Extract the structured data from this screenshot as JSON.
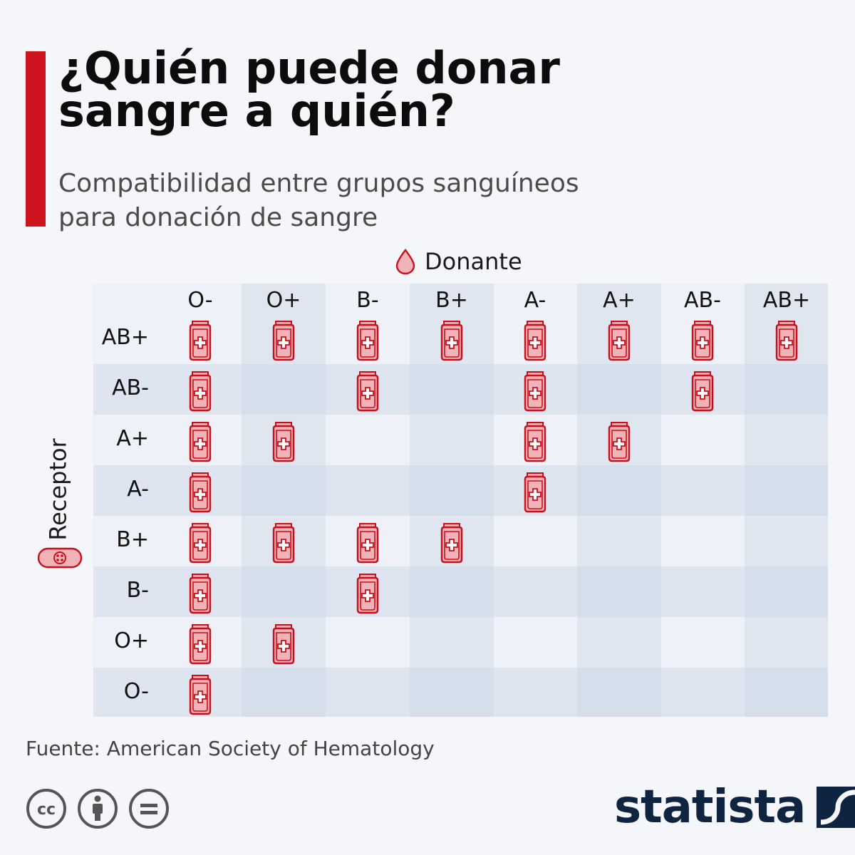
{
  "header": {
    "title_line1": "¿Quién puede donar",
    "title_line2": "sangre a quién?",
    "subtitle_line1": "Compatibilidad entre grupos sanguíneos",
    "subtitle_line2": "para donación de sangre",
    "accent_color": "#d0141f"
  },
  "legend": {
    "donor_label": "Donante",
    "icon": "blood-drop-icon"
  },
  "receptor": {
    "label": "Receptor",
    "icon": "blood-cells-icon"
  },
  "matrix": {
    "donors": [
      "O-",
      "O+",
      "B-",
      "B+",
      "A-",
      "A+",
      "AB-",
      "AB+"
    ],
    "recipients": [
      "AB+",
      "AB-",
      "A+",
      "A-",
      "B+",
      "B-",
      "O+",
      "O-"
    ],
    "compatible": [
      [
        1,
        1,
        1,
        1,
        1,
        1,
        1,
        1
      ],
      [
        1,
        0,
        1,
        0,
        1,
        0,
        1,
        0
      ],
      [
        1,
        1,
        0,
        0,
        1,
        1,
        0,
        0
      ],
      [
        1,
        0,
        0,
        0,
        1,
        0,
        0,
        0
      ],
      [
        1,
        1,
        1,
        1,
        0,
        0,
        0,
        0
      ],
      [
        1,
        0,
        1,
        0,
        0,
        0,
        0,
        0
      ],
      [
        1,
        1,
        0,
        0,
        0,
        0,
        0,
        0
      ],
      [
        1,
        0,
        0,
        0,
        0,
        0,
        0,
        0
      ]
    ],
    "mark_icon": "blood-bag-icon",
    "mark_color": "#c8101c",
    "mark_fill": "#f2b3b8"
  },
  "footer": {
    "source": "Fuente: American Society of Hematology",
    "license_icons": [
      "cc-icon",
      "attribution-icon",
      "no-derivatives-icon"
    ],
    "brand": "statista",
    "brand_color": "#0e2440"
  }
}
